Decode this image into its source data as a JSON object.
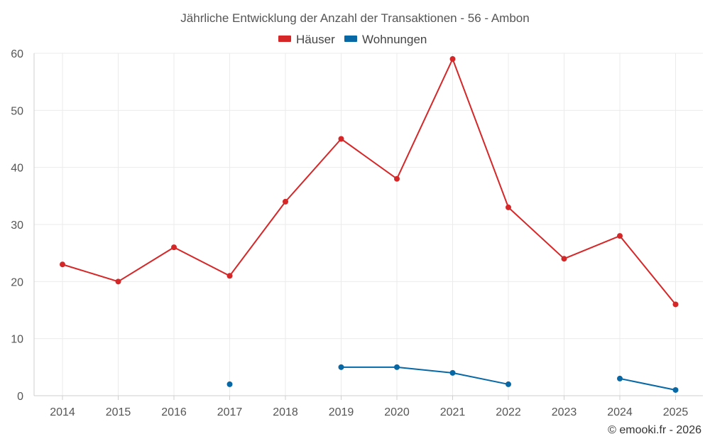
{
  "chart_data": {
    "type": "line",
    "title": "Jährliche Entwicklung der Anzahl der Transaktionen - 56 - Ambon",
    "categories": [
      "2014",
      "2015",
      "2016",
      "2017",
      "2018",
      "2019",
      "2020",
      "2021",
      "2022",
      "2023",
      "2024",
      "2025"
    ],
    "ylim": [
      0,
      60
    ],
    "yticks": [
      0,
      10,
      20,
      30,
      40,
      50,
      60
    ],
    "grid": true,
    "legend_position": "top-center",
    "series": [
      {
        "name": "Häuser",
        "color": "#d62728",
        "values": [
          23,
          20,
          26,
          21,
          34,
          45,
          38,
          59,
          33,
          24,
          28,
          16
        ]
      },
      {
        "name": "Wohnungen",
        "color": "#0868a6",
        "values": [
          null,
          null,
          null,
          2,
          null,
          5,
          5,
          4,
          2,
          null,
          3,
          1
        ]
      }
    ]
  },
  "credit": "© emooki.fr - 2026"
}
